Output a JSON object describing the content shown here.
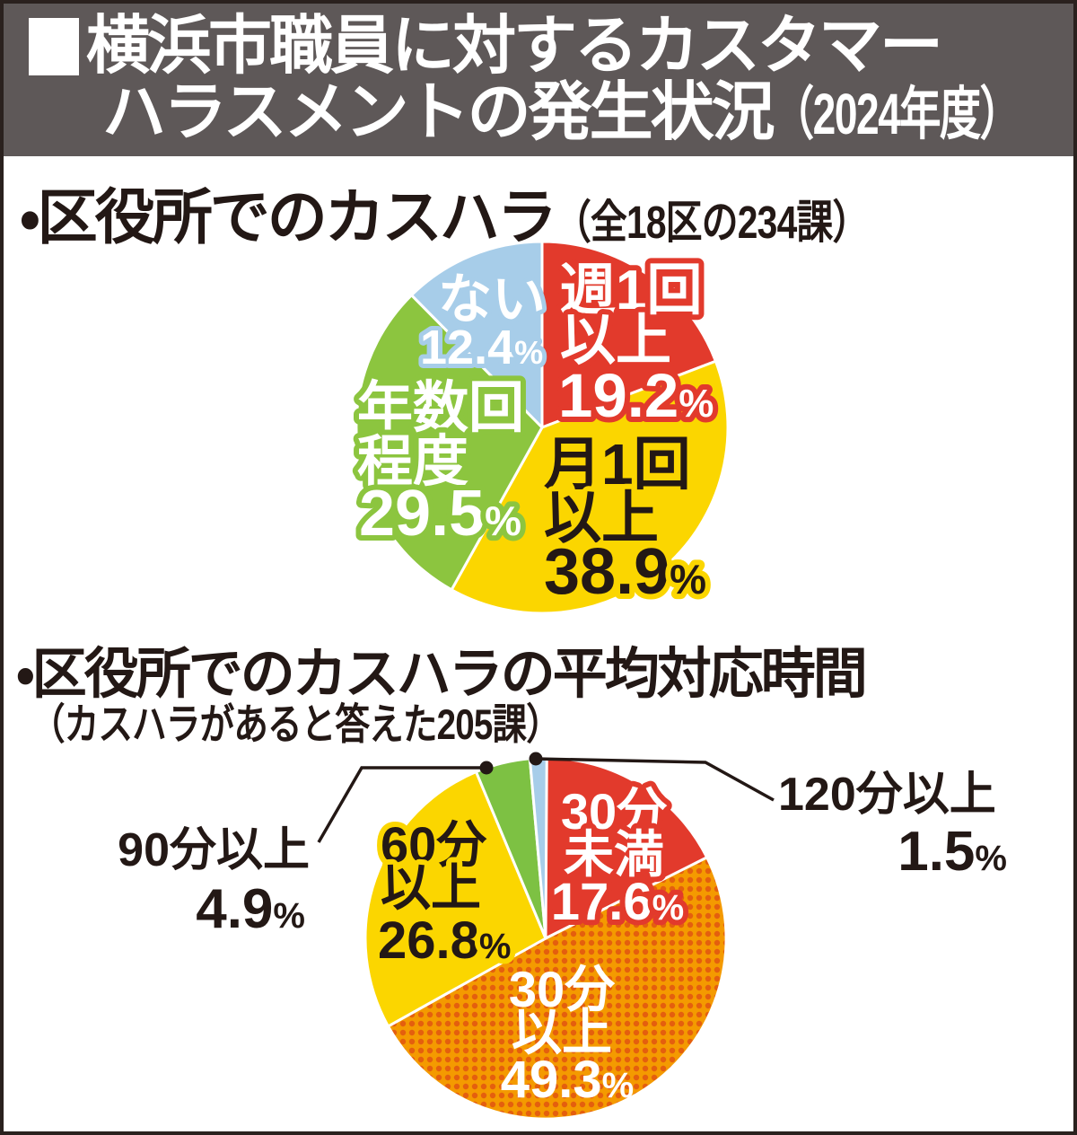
{
  "header": {
    "title_line1": "横浜市職員に対するカスタマー",
    "title_line2": "ハラスメントの発生状況",
    "title_year": "（2024年度）"
  },
  "sections": [
    {
      "heading": "・区役所でのカスハラ",
      "note": "（全18区の234課）"
    },
    {
      "heading": "・区役所でのカスハラの平均対応時間",
      "note": "（カスハラがあると答えた205課）"
    }
  ],
  "percent_sign": "%",
  "colors": {
    "header_bg": "#5e5858",
    "frame": "#2a211e",
    "text_black": "#231815",
    "red": "#e23a2c",
    "yellow": "#fbd600",
    "green1": "#8cc53f",
    "green2": "#7dc143",
    "blue": "#a7cde9",
    "orange": "#f49a00",
    "orange_dot": "#e45f0e"
  },
  "chart_data": [
    {
      "type": "pie",
      "title": "区役所でのカスハラ",
      "note": "全18区の234課",
      "start_angle_deg": 0,
      "direction": "clockwise",
      "slices": [
        {
          "label": "週1回以上",
          "label_lines": [
            "週1回",
            "以上"
          ],
          "value": 19.2,
          "pct": "19.2",
          "color": "#e23a2c"
        },
        {
          "label": "月1回以上",
          "label_lines": [
            "月1回",
            "以上"
          ],
          "value": 38.9,
          "pct": "38.9",
          "color": "#fbd600"
        },
        {
          "label": "年数回程度",
          "label_lines": [
            "年数回",
            "程度"
          ],
          "value": 29.5,
          "pct": "29.5",
          "color": "#8cc53f"
        },
        {
          "label": "ない",
          "label_lines": [
            "ない"
          ],
          "value": 12.4,
          "pct": "12.4",
          "color": "#a7cde9"
        }
      ]
    },
    {
      "type": "pie",
      "title": "区役所でのカスハラの平均対応時間",
      "note": "カスハラがあると答えた205課",
      "start_angle_deg": 0,
      "direction": "clockwise",
      "slices": [
        {
          "label": "30分未満",
          "label_lines": [
            "30分",
            "未満"
          ],
          "value": 17.6,
          "pct": "17.6",
          "color": "#e23a2c"
        },
        {
          "label": "30分以上",
          "label_lines": [
            "30分",
            "以上"
          ],
          "value": 49.3,
          "pct": "49.3",
          "color": "#f49a00",
          "pattern": true,
          "pattern_dot_color": "#e45f0e"
        },
        {
          "label": "60分以上",
          "label_lines": [
            "60分",
            "以上"
          ],
          "value": 26.8,
          "pct": "26.8",
          "color": "#fbd600"
        },
        {
          "label": "90分以上",
          "value": 4.9,
          "pct": "4.9",
          "color": "#7dc143",
          "label_outside": "left"
        },
        {
          "label": "120分以上",
          "value": 1.5,
          "pct": "1.5",
          "color": "#a7cde9",
          "label_outside": "right"
        }
      ]
    }
  ]
}
